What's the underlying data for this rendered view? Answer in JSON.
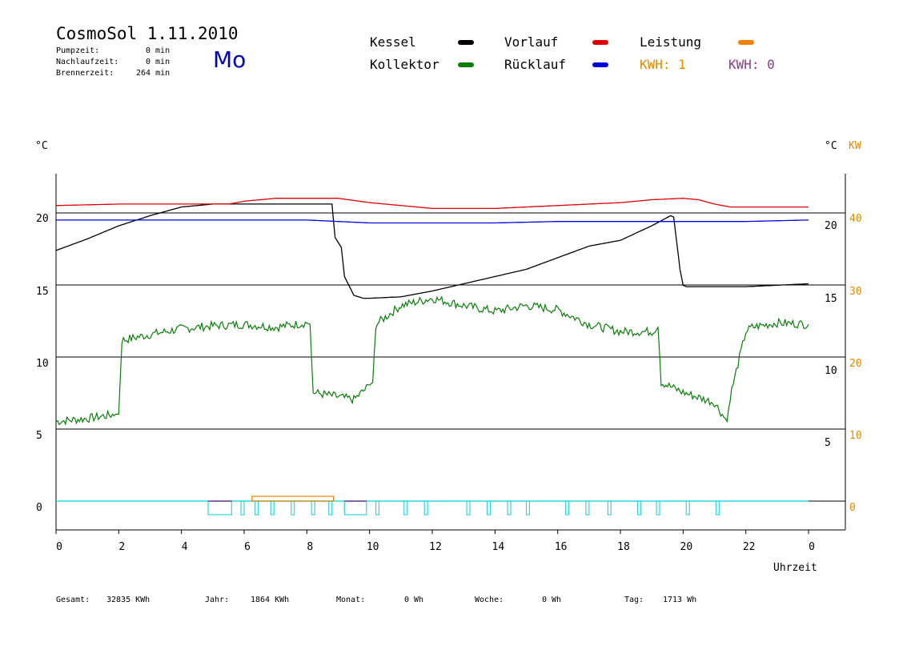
{
  "header": {
    "title": "CosmoSol 1.11.2010",
    "day": "Mo",
    "stats": [
      {
        "label": "Pumpzeit:",
        "value": "0 min"
      },
      {
        "label": "Nachlaufzeit:",
        "value": "0 min"
      },
      {
        "label": "Brennerzeit:",
        "value": "264 min"
      }
    ]
  },
  "legend": {
    "kessel": "Kessel",
    "vorlauf": "Vorlauf",
    "leistung": "Leistung",
    "kollektor": "Kollektor",
    "ruecklauf": "Rücklauf",
    "kwh1": "KWH: 1",
    "kwh0": "KWH: 0"
  },
  "axes": {
    "left_unit": "°C",
    "right_unit": "°C",
    "right_unit2": "KW",
    "xlabel": "Uhrzeit"
  },
  "footer": [
    {
      "label": "Gesamt:",
      "value": "32835 KWh"
    },
    {
      "label": "Jahr:",
      "value": "1864 KWh"
    },
    {
      "label": "Monat:",
      "value": "0 Wh"
    },
    {
      "label": "Woche:",
      "value": "0 Wh"
    },
    {
      "label": "Tag:",
      "value": "1713 Wh"
    }
  ],
  "colors": {
    "kessel": "#000000",
    "vorlauf": "#dd0000",
    "leistung": "#f08000",
    "kollektor": "#0a7d0a",
    "ruecklauf": "#0000dd",
    "pump": "#33d6e0",
    "kwh1": "#e08a00",
    "kwh0": "#8b3a8b"
  },
  "chart_data": {
    "type": "line",
    "x_ticks": [
      "0",
      "2",
      "4",
      "6",
      "8",
      "10",
      "12",
      "14",
      "16",
      "18",
      "20",
      "22",
      "0"
    ],
    "y_left_ticks": [
      "0",
      "5",
      "10",
      "15",
      "20"
    ],
    "y_right_ticks": [
      "5",
      "10",
      "15",
      "20"
    ],
    "y_kw_ticks": [
      "0",
      "10",
      "20",
      "30",
      "40"
    ],
    "xlim": [
      0,
      24
    ],
    "series": [
      {
        "name": "Kessel",
        "x": [
          0,
          1,
          2,
          3,
          4,
          5,
          6,
          7,
          8,
          8.8,
          8.9,
          9.1,
          9.2,
          9.5,
          9.8,
          10,
          11,
          12,
          13,
          14,
          15,
          16,
          17,
          17.5,
          18,
          19,
          19.6,
          19.7,
          19.9,
          20.0,
          20.1,
          21,
          22,
          23,
          24
        ],
        "y": [
          17.3,
          18.1,
          19,
          19.7,
          20.3,
          20.5,
          20.5,
          20.5,
          20.5,
          20.5,
          18.2,
          17.5,
          15.5,
          14.2,
          14.0,
          14.0,
          14.1,
          14.5,
          15,
          15.5,
          16,
          16.8,
          17.6,
          17.8,
          18,
          19,
          19.7,
          19.6,
          16,
          14.9,
          14.8,
          14.8,
          14.8,
          14.9,
          15
        ]
      },
      {
        "name": "Vorlauf",
        "x": [
          0,
          2,
          4,
          5.5,
          6,
          7,
          8,
          9,
          10,
          11,
          12,
          13,
          14,
          15,
          16,
          17,
          18,
          19,
          20,
          20.5,
          21,
          21.5,
          22,
          24
        ],
        "y": [
          20.4,
          20.5,
          20.5,
          20.5,
          20.7,
          20.9,
          20.9,
          20.9,
          20.6,
          20.4,
          20.2,
          20.2,
          20.2,
          20.3,
          20.4,
          20.5,
          20.6,
          20.8,
          20.9,
          20.8,
          20.5,
          20.3,
          20.3,
          20.3
        ]
      },
      {
        "name": "Rücklauf",
        "x": [
          0,
          2,
          4,
          6,
          8,
          9,
          10,
          12,
          14,
          16,
          18,
          20,
          22,
          24
        ],
        "y": [
          19.4,
          19.4,
          19.4,
          19.4,
          19.4,
          19.3,
          19.2,
          19.2,
          19.2,
          19.3,
          19.3,
          19.3,
          19.3,
          19.4
        ]
      },
      {
        "name": "Kollektor",
        "x": [
          0,
          1,
          1.9,
          2.0,
          2.1,
          3,
          4,
          5,
          6,
          7,
          8,
          8.1,
          8.2,
          9,
          9.5,
          10,
          10.1,
          10.2,
          11,
          12,
          13,
          14,
          15,
          16,
          17,
          18,
          19,
          19.2,
          19.3,
          20,
          21,
          21.4,
          21.5,
          22,
          22.2,
          23,
          24
        ],
        "y": [
          5.5,
          5.7,
          6,
          6,
          11.1,
          11.5,
          11.9,
          12.1,
          12.2,
          12.0,
          12.3,
          12.2,
          7.5,
          7.2,
          7.0,
          8.0,
          8.2,
          12.2,
          13.5,
          14.0,
          13.5,
          13.1,
          13.5,
          13.2,
          12.2,
          11.7,
          11.7,
          12,
          8.2,
          7.5,
          6.8,
          5.5,
          7.2,
          11.7,
          12.0,
          12.3,
          12.2
        ]
      }
    ],
    "pump_blocks": [
      [
        4.85,
        5.6
      ],
      [
        5.9,
        6.0
      ],
      [
        6.35,
        6.45
      ],
      [
        6.85,
        6.95
      ],
      [
        7.5,
        7.6
      ],
      [
        8.15,
        8.25
      ],
      [
        8.7,
        8.8
      ],
      [
        9.2,
        9.9
      ],
      [
        10.2,
        10.3
      ],
      [
        11.1,
        11.2
      ],
      [
        11.75,
        11.85
      ],
      [
        13.1,
        13.2
      ],
      [
        13.75,
        13.85
      ],
      [
        14.4,
        14.5
      ],
      [
        15.0,
        15.1
      ],
      [
        16.25,
        16.35
      ],
      [
        16.9,
        17.0
      ],
      [
        17.6,
        17.7
      ],
      [
        18.55,
        18.65
      ],
      [
        19.15,
        19.25
      ],
      [
        20.1,
        20.2
      ],
      [
        21.05,
        21.15
      ]
    ],
    "leistung_blocks": [
      [
        6.25,
        8.85
      ]
    ],
    "kwh0_blocks": [
      [
        4.85,
        5.6
      ],
      [
        9.2,
        9.9
      ]
    ]
  }
}
